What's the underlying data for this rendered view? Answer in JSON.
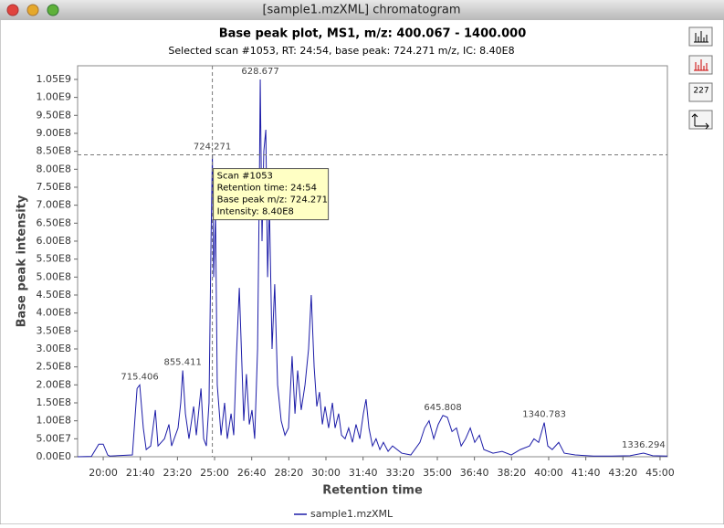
{
  "window_title": "[sample1.mzXML] chromatogram",
  "toolbar_label": "227",
  "chart_data": {
    "type": "line",
    "title": "Base peak plot, MS1, m/z: 400.067 - 1400.000",
    "subtitle": "Selected scan #1053, RT: 24:54, base peak: 724.271 m/z, IC: 8.40E8",
    "x_label": "Retention time",
    "y_label": "Base peak intensity",
    "xlim": [
      18.85,
      45.33
    ],
    "ylim": [
      0,
      1088000000
    ],
    "xticks": [
      {
        "value": 20,
        "label": "20:00"
      },
      {
        "value": 21.6667,
        "label": "21:40"
      },
      {
        "value": 23.3333,
        "label": "23:20"
      },
      {
        "value": 25,
        "label": "25:00"
      },
      {
        "value": 26.6667,
        "label": "26:40"
      },
      {
        "value": 28.3333,
        "label": "28:20"
      },
      {
        "value": 30,
        "label": "30:00"
      },
      {
        "value": 31.6667,
        "label": "31:40"
      },
      {
        "value": 33.3333,
        "label": "33:20"
      },
      {
        "value": 35,
        "label": "35:00"
      },
      {
        "value": 36.6667,
        "label": "36:40"
      },
      {
        "value": 38.3333,
        "label": "38:20"
      },
      {
        "value": 40,
        "label": "40:00"
      },
      {
        "value": 41.6667,
        "label": "41:40"
      },
      {
        "value": 43.3333,
        "label": "43:20"
      },
      {
        "value": 45,
        "label": "45:00"
      }
    ],
    "yticks": [
      {
        "value": 0,
        "label": "0.00E0"
      },
      {
        "value": 50000000.0,
        "label": "5.00E7"
      },
      {
        "value": 100000000.0,
        "label": "1.00E8"
      },
      {
        "value": 150000000.0,
        "label": "1.50E8"
      },
      {
        "value": 200000000.0,
        "label": "2.00E8"
      },
      {
        "value": 250000000.0,
        "label": "2.50E8"
      },
      {
        "value": 300000000.0,
        "label": "3.00E8"
      },
      {
        "value": 350000000.0,
        "label": "3.50E8"
      },
      {
        "value": 400000000.0,
        "label": "4.00E8"
      },
      {
        "value": 450000000.0,
        "label": "4.50E8"
      },
      {
        "value": 500000000.0,
        "label": "5.00E8"
      },
      {
        "value": 550000000.0,
        "label": "5.50E8"
      },
      {
        "value": 600000000.0,
        "label": "6.00E8"
      },
      {
        "value": 650000000.0,
        "label": "6.50E8"
      },
      {
        "value": 700000000.0,
        "label": "7.00E8"
      },
      {
        "value": 750000000.0,
        "label": "7.50E8"
      },
      {
        "value": 800000000.0,
        "label": "8.00E8"
      },
      {
        "value": 850000000.0,
        "label": "8.50E8"
      },
      {
        "value": 900000000.0,
        "label": "9.00E8"
      },
      {
        "value": 950000000.0,
        "label": "9.50E8"
      },
      {
        "value": 1000000000.0,
        "label": "1.00E9"
      },
      {
        "value": 1050000000.0,
        "label": "1.05E9"
      }
    ],
    "x": [
      18.85,
      19.47,
      19.8,
      20.0,
      20.2,
      20.29,
      21.31,
      21.52,
      21.64,
      21.8,
      21.93,
      22.13,
      22.34,
      22.46,
      22.75,
      22.95,
      23.07,
      23.36,
      23.48,
      23.57,
      23.69,
      23.85,
      24.06,
      24.18,
      24.39,
      24.51,
      24.63,
      24.75,
      24.84,
      24.9,
      24.96,
      25.04,
      25.12,
      25.29,
      25.45,
      25.57,
      25.74,
      25.86,
      25.98,
      26.11,
      26.23,
      26.31,
      26.43,
      26.56,
      26.68,
      26.8,
      26.93,
      27.01,
      27.05,
      27.13,
      27.21,
      27.3,
      27.38,
      27.46,
      27.58,
      27.7,
      27.83,
      27.99,
      28.16,
      28.32,
      28.48,
      28.61,
      28.73,
      28.89,
      29.06,
      29.22,
      29.34,
      29.47,
      29.59,
      29.71,
      29.84,
      29.96,
      30.12,
      30.29,
      30.41,
      30.57,
      30.7,
      30.86,
      31.02,
      31.19,
      31.35,
      31.52,
      31.68,
      31.8,
      31.93,
      32.09,
      32.25,
      32.42,
      32.58,
      32.79,
      32.99,
      33.4,
      33.81,
      34.22,
      34.43,
      34.63,
      34.84,
      35.04,
      35.25,
      35.45,
      35.66,
      35.86,
      36.07,
      36.27,
      36.48,
      36.68,
      36.89,
      37.09,
      37.5,
      37.91,
      38.32,
      38.73,
      39.14,
      39.34,
      39.55,
      39.8,
      39.96,
      40.16,
      40.45,
      40.7,
      41.19,
      42.01,
      42.83,
      43.65,
      44.26,
      44.67,
      45.33
    ],
    "series": [
      {
        "name": "sample1.mzXML",
        "color": "#1c1ca8",
        "values": [
          0,
          1000000.0,
          35000000.0,
          35000000.0,
          5000000.0,
          2000000.0,
          5000000.0,
          190000000.0,
          200000000.0,
          80000000.0,
          20000000.0,
          30000000.0,
          130000000.0,
          30000000.0,
          50000000.0,
          90000000.0,
          30000000.0,
          80000000.0,
          150000000.0,
          240000000.0,
          120000000.0,
          50000000.0,
          140000000.0,
          60000000.0,
          190000000.0,
          50000000.0,
          30000000.0,
          150000000.0,
          600000000.0,
          840000000.0,
          500000000.0,
          680000000.0,
          200000000.0,
          60000000.0,
          150000000.0,
          50000000.0,
          120000000.0,
          60000000.0,
          280000000.0,
          470000000.0,
          250000000.0,
          100000000.0,
          230000000.0,
          90000000.0,
          130000000.0,
          50000000.0,
          300000000.0,
          750000000.0,
          1050000000.0,
          600000000.0,
          850000000.0,
          910000000.0,
          500000000.0,
          700000000.0,
          300000000.0,
          480000000.0,
          200000000.0,
          100000000.0,
          60000000.0,
          80000000.0,
          280000000.0,
          120000000.0,
          240000000.0,
          130000000.0,
          200000000.0,
          300000000.0,
          450000000.0,
          250000000.0,
          140000000.0,
          180000000.0,
          90000000.0,
          140000000.0,
          80000000.0,
          150000000.0,
          80000000.0,
          120000000.0,
          60000000.0,
          50000000.0,
          80000000.0,
          40000000.0,
          90000000.0,
          50000000.0,
          120000000.0,
          160000000.0,
          80000000.0,
          30000000.0,
          50000000.0,
          20000000.0,
          40000000.0,
          15000000.0,
          30000000.0,
          10000000.0,
          5000000.0,
          40000000.0,
          80000000.0,
          100000000.0,
          50000000.0,
          90000000.0,
          115000000.0,
          110000000.0,
          70000000.0,
          80000000.0,
          30000000.0,
          50000000.0,
          80000000.0,
          40000000.0,
          60000000.0,
          20000000.0,
          10000000.0,
          15000000.0,
          5000000.0,
          20000000.0,
          30000000.0,
          50000000.0,
          40000000.0,
          95000000.0,
          30000000.0,
          20000000.0,
          40000000.0,
          10000000.0,
          5000000.0,
          2000000.0,
          2000000.0,
          3000000.0,
          10000000.0,
          3000000.0,
          2000000.0
        ]
      }
    ],
    "annotations": [
      {
        "text": "715.406",
        "x": 21.64,
        "y": 200000000.0
      },
      {
        "text": "855.411",
        "x": 23.57,
        "y": 240000000.0
      },
      {
        "text": "724.271",
        "x": 24.9,
        "y": 840000000.0
      },
      {
        "text": "628.677",
        "x": 27.05,
        "y": 1050000000.0
      },
      {
        "text": "645.808",
        "x": 35.25,
        "y": 115000000.0
      },
      {
        "text": "1340.783",
        "x": 39.8,
        "y": 95000000.0
      },
      {
        "text": "1336.294",
        "x": 44.26,
        "y": 10000000.0
      }
    ],
    "crosshair": {
      "x": 24.9,
      "y": 840000000
    },
    "tooltip": [
      "Scan #1053",
      "Retention time: 24:54",
      "Base peak m/z: 724.271",
      "Intensity: 8.40E8"
    ],
    "legend": "bottom"
  }
}
